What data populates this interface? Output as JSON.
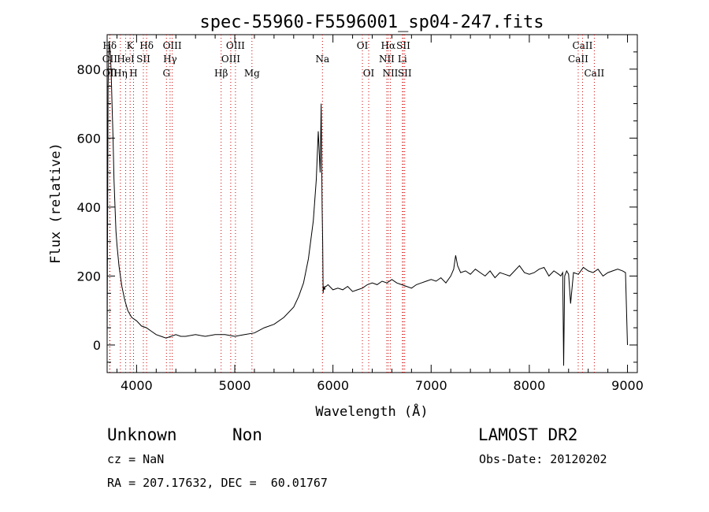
{
  "chart_data": {
    "type": "line",
    "title": "spec-55960-F5596001_sp04-247.fits",
    "xlabel": "Wavelength (Å)",
    "ylabel": "Flux (relative)",
    "xlim": [
      3700,
      9100
    ],
    "ylim": [
      -80,
      900
    ],
    "x_ticks": [
      4000,
      5000,
      6000,
      7000,
      8000,
      9000
    ],
    "y_ticks": [
      0,
      200,
      400,
      600,
      800
    ],
    "grid": false,
    "series": [
      {
        "x": [
          3700,
          3710,
          3720,
          3730,
          3740,
          3750,
          3760,
          3770,
          3780,
          3790,
          3800,
          3820,
          3850,
          3880,
          3910,
          3950,
          4000,
          4050,
          4100,
          4150,
          4200,
          4250,
          4300,
          4350,
          4400,
          4450,
          4500,
          4600,
          4700,
          4800,
          4900,
          5000,
          5100,
          5200,
          5300,
          5400,
          5500,
          5600,
          5650,
          5700,
          5750,
          5800,
          5830,
          5850,
          5870,
          5880,
          5890,
          5895,
          5900,
          5905,
          5910,
          5915,
          5920,
          5930,
          5950,
          6000,
          6050,
          6100,
          6150,
          6200,
          6250,
          6300,
          6350,
          6400,
          6450,
          6500,
          6550,
          6600,
          6650,
          6700,
          6750,
          6800,
          6850,
          6900,
          6950,
          7000,
          7050,
          7100,
          7150,
          7200,
          7230,
          7250,
          7270,
          7300,
          7350,
          7400,
          7450,
          7500,
          7550,
          7600,
          7650,
          7700,
          7750,
          7800,
          7850,
          7900,
          7950,
          8000,
          8050,
          8100,
          8150,
          8200,
          8250,
          8300,
          8320,
          8340,
          8350,
          8360,
          8380,
          8400,
          8420,
          8450,
          8500,
          8550,
          8600,
          8650,
          8700,
          8750,
          8800,
          8850,
          8900,
          8950,
          8980,
          9000
        ],
        "y": [
          0,
          750,
          880,
          860,
          800,
          700,
          600,
          480,
          400,
          330,
          290,
          230,
          170,
          130,
          100,
          80,
          70,
          55,
          50,
          40,
          30,
          25,
          20,
          25,
          30,
          25,
          25,
          30,
          25,
          30,
          30,
          25,
          30,
          35,
          50,
          60,
          80,
          110,
          140,
          180,
          250,
          360,
          480,
          620,
          500,
          700,
          400,
          300,
          150,
          170,
          165,
          160,
          170,
          170,
          175,
          160,
          165,
          160,
          170,
          155,
          160,
          165,
          175,
          180,
          175,
          185,
          180,
          190,
          180,
          175,
          170,
          165,
          175,
          180,
          185,
          190,
          185,
          195,
          180,
          200,
          220,
          260,
          230,
          210,
          215,
          205,
          220,
          210,
          200,
          215,
          195,
          210,
          205,
          200,
          215,
          230,
          210,
          205,
          210,
          220,
          225,
          200,
          215,
          205,
          200,
          210,
          -60,
          200,
          215,
          205,
          120,
          210,
          205,
          225,
          215,
          210,
          220,
          200,
          210,
          215,
          220,
          215,
          210,
          0
        ]
      }
    ],
    "line_markers": [
      {
        "label": "Hδ",
        "x": 3726,
        "row": 1,
        "color": "#000000"
      },
      {
        "label": "OII",
        "x": 3727,
        "row": 2,
        "color": "#000000"
      },
      {
        "label": "OII",
        "x": 3729,
        "row": 3,
        "color": "#000000"
      },
      {
        "label": "Hη",
        "x": 3835,
        "row": 3,
        "color": "#000000"
      },
      {
        "label": "K",
        "x": 3934,
        "row": 1,
        "color": "#000000"
      },
      {
        "label": "HeI",
        "x": 3889,
        "row": 2,
        "color": "#000000"
      },
      {
        "label": "H",
        "x": 3969,
        "row": 3,
        "color": "#000000"
      },
      {
        "label": "SII",
        "x": 4069,
        "row": 2,
        "color": "#000000"
      },
      {
        "label": "Hδ",
        "x": 4102,
        "row": 1,
        "color": "#000000"
      },
      {
        "label": "OIII",
        "x": 4363,
        "row": 1,
        "color": "#000000"
      },
      {
        "label": "Hγ",
        "x": 4341,
        "row": 2,
        "color": "#000000"
      },
      {
        "label": "G",
        "x": 4304,
        "row": 3,
        "color": "#000000"
      },
      {
        "label": "OIII",
        "x": 5007,
        "row": 1,
        "color": "#000000"
      },
      {
        "label": "OIII",
        "x": 4959,
        "row": 2,
        "color": "#000000"
      },
      {
        "label": "Hβ",
        "x": 4861,
        "row": 3,
        "color": "#000000"
      },
      {
        "label": "Mg",
        "x": 5175,
        "row": 3,
        "color": "#000000"
      },
      {
        "label": "Na",
        "x": 5893,
        "row": 2,
        "color": "#000000"
      },
      {
        "label": "OI",
        "x": 6300,
        "row": 1,
        "color": "#000000"
      },
      {
        "label": "OI",
        "x": 6364,
        "row": 3,
        "color": "#000000"
      },
      {
        "label": "Hα",
        "x": 6563,
        "row": 1,
        "color": "#000000"
      },
      {
        "label": "NII",
        "x": 6548,
        "row": 2,
        "color": "#000000"
      },
      {
        "label": "NII",
        "x": 6584,
        "row": 3,
        "color": "#000000"
      },
      {
        "label": "SII",
        "x": 6717,
        "row": 1,
        "color": "#000000"
      },
      {
        "label": "Li",
        "x": 6707,
        "row": 2,
        "color": "#000000"
      },
      {
        "label": "SII",
        "x": 6731,
        "row": 3,
        "color": "#000000"
      },
      {
        "label": "CaII",
        "x": 8542,
        "row": 1,
        "color": "#000000"
      },
      {
        "label": "CaII",
        "x": 8498,
        "row": 2,
        "color": "#000000"
      },
      {
        "label": "CaII",
        "x": 8662,
        "row": 3,
        "color": "#000000"
      }
    ],
    "marker_line_color": "#cc0000"
  },
  "info": {
    "class_label": "Unknown",
    "subclass_label": "Non",
    "survey_label": "LAMOST DR2",
    "cz": "cz = NaN",
    "obs_date": "Obs-Date: 20120202",
    "coords": "RA = 207.17632, DEC =  60.01767"
  }
}
